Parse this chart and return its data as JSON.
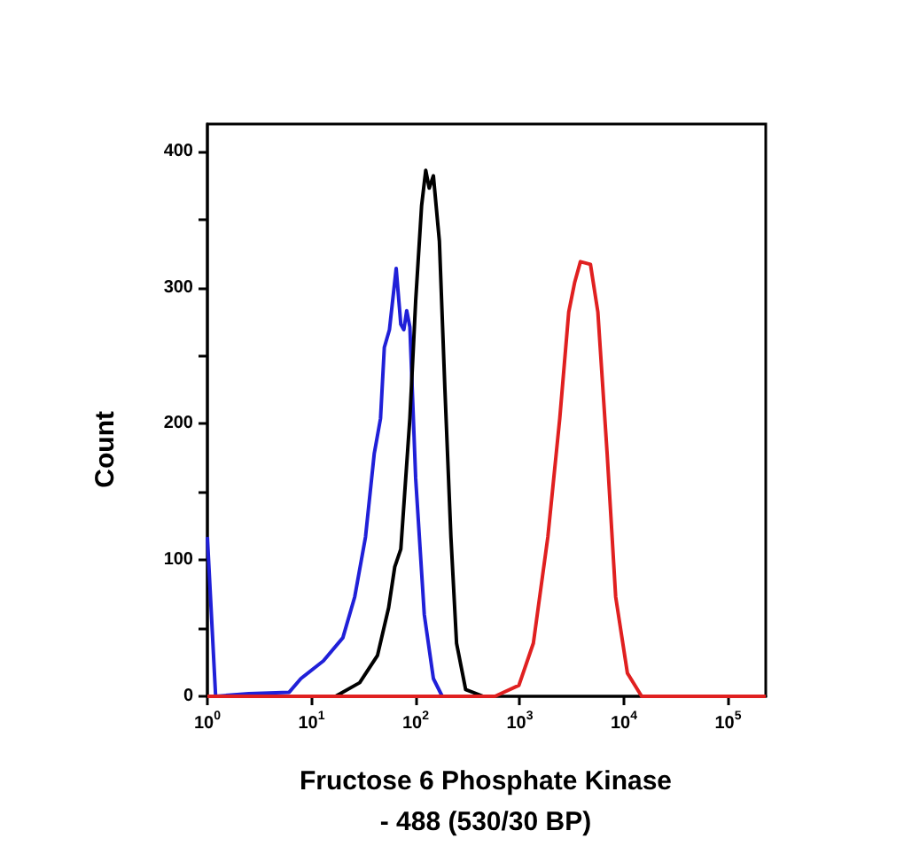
{
  "chart_data": {
    "type": "line",
    "xlabel": "Fructose 6 Phosphate Kinase\n- 488 (530/30 BP)",
    "ylabel": "Count",
    "log": "x",
    "xlim": [
      1,
      230000
    ],
    "ylim": [
      0,
      420
    ],
    "xticks": [
      {
        "value": 1,
        "label": "10$^{0}$"
      },
      {
        "value": 10,
        "label": "10$^{1}$"
      },
      {
        "value": 100,
        "label": "10$^{2}$"
      },
      {
        "value": 1000,
        "label": "10$^{3}$"
      },
      {
        "value": 10000,
        "label": "10$^{4}$"
      },
      {
        "value": 100000,
        "label": "10$^{5}$"
      }
    ],
    "yticks": [
      0,
      {
        "value": 50,
        "label": null
      },
      100,
      {
        "value": 150,
        "label": null
      },
      200,
      {
        "value": 250,
        "label": null
      },
      300,
      {
        "value": 350,
        "label": null
      },
      400
    ],
    "grid": false,
    "marker": "none",
    "line_style": "solid",
    "series": [
      {
        "color": "#2020d8",
        "x": [
          1,
          1.2,
          2.5,
          6.1,
          7.9,
          13,
          20,
          26,
          33,
          40,
          46,
          50,
          56,
          65,
          72,
          77,
          82,
          88,
          100,
          121,
          148,
          180
        ],
        "values": [
          117,
          0,
          2,
          3,
          13,
          26,
          43,
          73,
          117,
          178,
          204,
          256,
          269,
          314,
          273,
          269,
          283,
          271,
          160,
          60,
          13,
          0
        ]
      },
      {
        "color": "#000000",
        "x": [
          17,
          29,
          43,
          55,
          63,
          72,
          88,
          100,
          114,
          125,
          135,
          148,
          169,
          191,
          218,
          247,
          302,
          446
        ],
        "values": [
          0,
          10,
          30,
          65,
          95,
          108,
          204,
          290,
          360,
          386,
          373,
          382,
          334,
          225,
          117,
          39,
          5,
          0
        ]
      },
      {
        "color": "#e02020",
        "x": [
          1,
          577,
          980,
          1350,
          1860,
          2420,
          2950,
          3370,
          3820,
          4770,
          5620,
          6900,
          8330,
          10800,
          14800,
          230000
        ],
        "values": [
          0,
          0,
          8,
          39,
          117,
          204,
          282,
          304,
          319,
          317,
          282,
          178,
          73,
          17,
          0,
          0
        ]
      }
    ]
  }
}
